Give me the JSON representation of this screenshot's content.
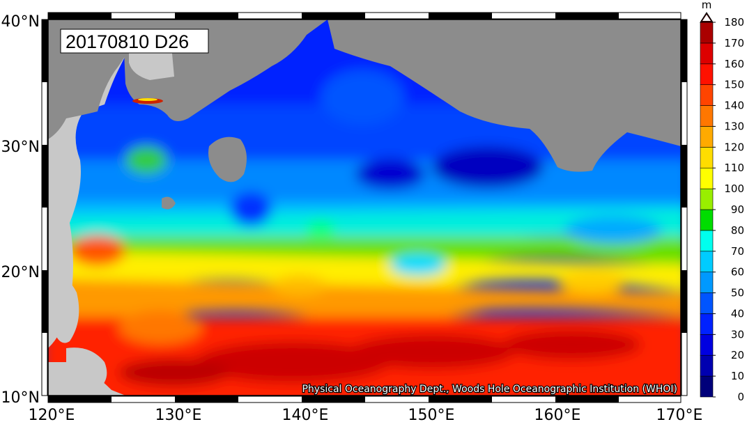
{
  "map": {
    "date_label": "20170810 D26",
    "credit": "Physical Oceanography Dept., Woods Hole Oceanographic Institution (WHOI)",
    "lat_ticks": [
      "10°N",
      "20°N",
      "30°N",
      "40°N"
    ],
    "lon_ticks": [
      "120°E",
      "130°E",
      "140°E",
      "150°E",
      "160°E",
      "170°E"
    ],
    "extent": {
      "lon": [
        120,
        170
      ],
      "lat": [
        10,
        40
      ]
    },
    "land_color": "#8c8c8c",
    "land_outside_color": "#c8c8c8"
  },
  "colorbar": {
    "unit": "m",
    "ticks": [
      "0",
      "10",
      "20",
      "30",
      "40",
      "50",
      "60",
      "70",
      "80",
      "90",
      "100",
      "110",
      "120",
      "130",
      "140",
      "150",
      "160",
      "170",
      "180"
    ],
    "colors": [
      "#00007a",
      "#0000b0",
      "#0000e0",
      "#0022ff",
      "#0055ff",
      "#0099ff",
      "#00ccff",
      "#00ffee",
      "#00dd00",
      "#99ee00",
      "#ffff00",
      "#ffdd00",
      "#ffaa00",
      "#ff7700",
      "#ff4400",
      "#ff1100",
      "#dd0000",
      "#aa0000",
      "#800000",
      "#330000"
    ]
  }
}
